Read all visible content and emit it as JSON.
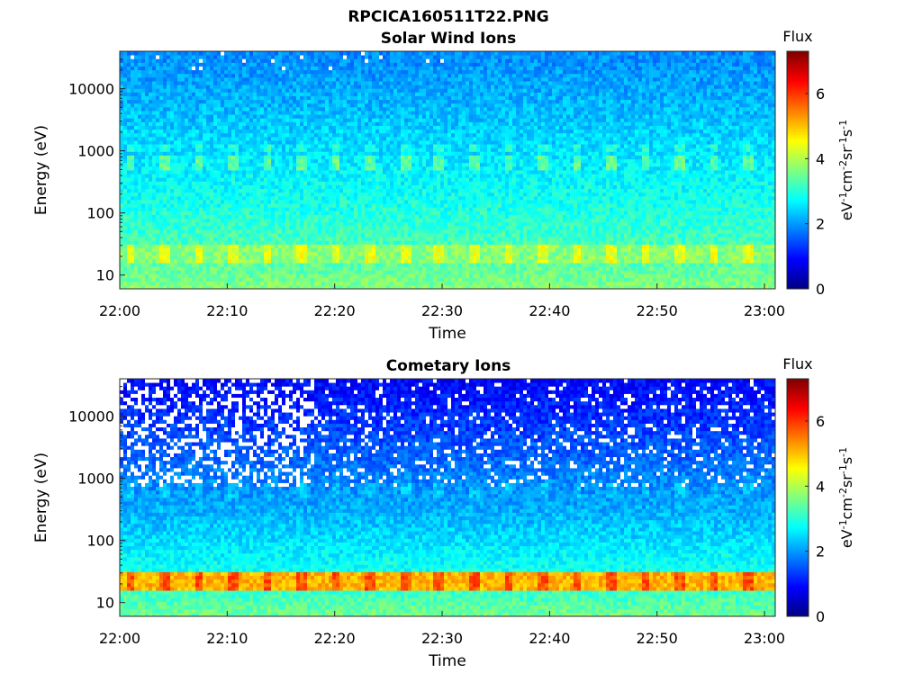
{
  "figure": {
    "title": "RPCICA160511T22.PNG"
  },
  "chart_data": [
    {
      "type": "heatmap",
      "title": "Solar Wind Ions",
      "xlabel": "Time",
      "ylabel": "Energy (eV)",
      "x_ticks": [
        "22:00",
        "22:10",
        "22:20",
        "22:30",
        "22:40",
        "22:50",
        "23:00"
      ],
      "y_ticks": [
        "10",
        "100",
        "1000",
        "10000"
      ],
      "y_scale": "log",
      "ylim": [
        6,
        40000
      ],
      "xlim": [
        "22:00",
        "23:01"
      ],
      "colorbar": {
        "label": "Flux",
        "units": "eV-1cm-2sr-1s-1",
        "ticks": [
          "0",
          "2",
          "4",
          "6"
        ],
        "range": [
          0,
          7.3
        ],
        "colormap": "jet"
      },
      "features": {
        "background_level_high_energy": 1.9,
        "background_level_low_energy": 3.7,
        "band_energy_ev": 650,
        "band_level": 3.4,
        "low_band_energy_ev": 22,
        "low_band_level": 4.4,
        "pulse_period_min": 3.2,
        "dropouts": false
      }
    },
    {
      "type": "heatmap",
      "title": "Cometary Ions",
      "xlabel": "Time",
      "ylabel": "Energy (eV)",
      "x_ticks": [
        "22:00",
        "22:10",
        "22:20",
        "22:30",
        "22:40",
        "22:50",
        "23:00"
      ],
      "y_ticks": [
        "10",
        "100",
        "1000",
        "10000"
      ],
      "y_scale": "log",
      "ylim": [
        6,
        40000
      ],
      "xlim": [
        "22:00",
        "23:01"
      ],
      "colorbar": {
        "label": "Flux",
        "units": "eV-1cm-2sr-1s-1",
        "ticks": [
          "0",
          "2",
          "4",
          "6"
        ],
        "range": [
          0,
          7.3
        ],
        "colormap": "jet"
      },
      "features": {
        "background_level_high_energy": 0.9,
        "background_level_low_energy": 3.6,
        "band_energy_ev": 650,
        "band_level": 2.3,
        "low_band_energy_ev": 22,
        "low_band_level": 5.8,
        "pulse_period_min": 3.2,
        "dropouts": true
      }
    }
  ]
}
